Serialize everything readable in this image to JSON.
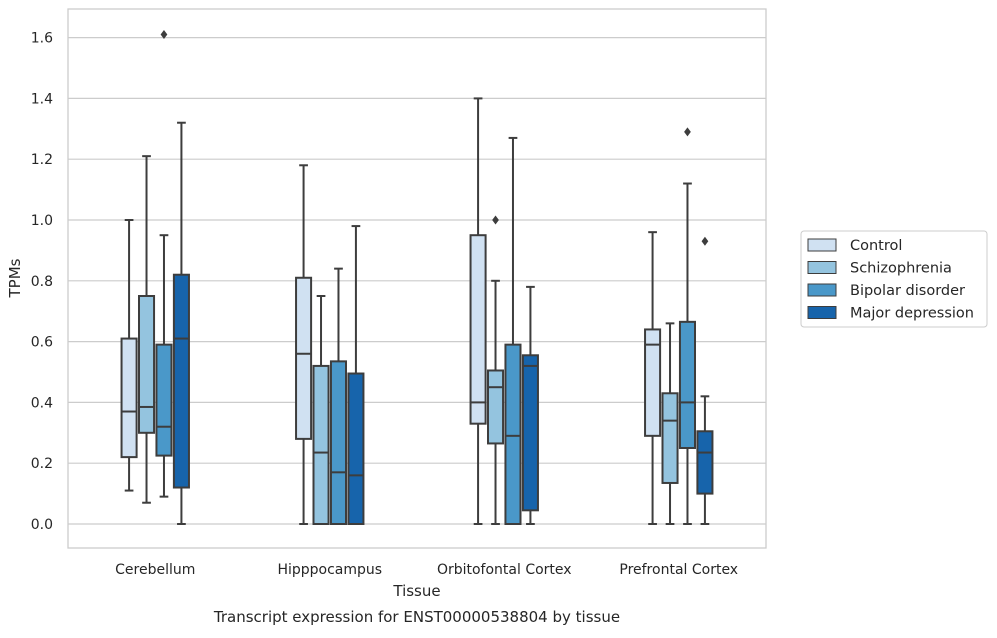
{
  "chart_data": {
    "type": "box",
    "title": "",
    "caption": "Transcript expression for ENST00000538804 by tissue",
    "xlabel": "Tissue",
    "ylabel": "TPMs",
    "categories": [
      "Cerebellum",
      "Hipppocampus",
      "Orbitofontal Cortex",
      "Prefrontal Cortex"
    ],
    "ylim": [
      -0.08,
      1.69
    ],
    "yticks": [
      "0.0",
      "0.2",
      "0.4",
      "0.6",
      "0.8",
      "1.0",
      "1.2",
      "1.4",
      "1.6"
    ],
    "grid": true,
    "legend_position": "right",
    "series": [
      {
        "name": "Control",
        "color": "#d0e1f2",
        "boxes": [
          {
            "min": 0.11,
            "q1": 0.22,
            "median": 0.37,
            "q3": 0.61,
            "max": 1.0,
            "outliers": []
          },
          {
            "min": 0.0,
            "q1": 0.28,
            "median": 0.56,
            "q3": 0.81,
            "max": 1.18,
            "outliers": []
          },
          {
            "min": 0.0,
            "q1": 0.33,
            "median": 0.4,
            "q3": 0.95,
            "max": 1.4,
            "outliers": []
          },
          {
            "min": 0.0,
            "q1": 0.29,
            "median": 0.59,
            "q3": 0.64,
            "max": 0.96,
            "outliers": []
          }
        ]
      },
      {
        "name": "Schizophrenia",
        "color": "#94c4df",
        "boxes": [
          {
            "min": 0.07,
            "q1": 0.3,
            "median": 0.385,
            "q3": 0.75,
            "max": 1.21,
            "outliers": []
          },
          {
            "min": 0.0,
            "q1": 0.0,
            "median": 0.235,
            "q3": 0.52,
            "max": 0.75,
            "outliers": []
          },
          {
            "min": 0.0,
            "q1": 0.265,
            "median": 0.45,
            "q3": 0.505,
            "max": 0.8,
            "outliers": [
              1.0
            ]
          },
          {
            "min": 0.0,
            "q1": 0.135,
            "median": 0.34,
            "q3": 0.43,
            "max": 0.66,
            "outliers": []
          }
        ]
      },
      {
        "name": "Bipolar disorder",
        "color": "#4a98c9",
        "boxes": [
          {
            "min": 0.09,
            "q1": 0.225,
            "median": 0.32,
            "q3": 0.59,
            "max": 0.95,
            "outliers": [
              1.61
            ]
          },
          {
            "min": 0.0,
            "q1": 0.0,
            "median": 0.17,
            "q3": 0.535,
            "max": 0.84,
            "outliers": []
          },
          {
            "min": 0.0,
            "q1": 0.0,
            "median": 0.29,
            "q3": 0.59,
            "max": 1.27,
            "outliers": []
          },
          {
            "min": 0.0,
            "q1": 0.25,
            "median": 0.4,
            "q3": 0.665,
            "max": 1.12,
            "outliers": [
              1.29
            ]
          }
        ]
      },
      {
        "name": "Major depression",
        "color": "#1764ab",
        "boxes": [
          {
            "min": 0.0,
            "q1": 0.12,
            "median": 0.61,
            "q3": 0.82,
            "max": 1.32,
            "outliers": []
          },
          {
            "min": 0.0,
            "q1": 0.0,
            "median": 0.16,
            "q3": 0.495,
            "max": 0.98,
            "outliers": []
          },
          {
            "min": 0.0,
            "q1": 0.045,
            "median": 0.52,
            "q3": 0.555,
            "max": 0.78,
            "outliers": []
          },
          {
            "min": 0.0,
            "q1": 0.1,
            "median": 0.235,
            "q3": 0.305,
            "max": 0.42,
            "outliers": [
              0.93
            ]
          }
        ]
      }
    ]
  }
}
